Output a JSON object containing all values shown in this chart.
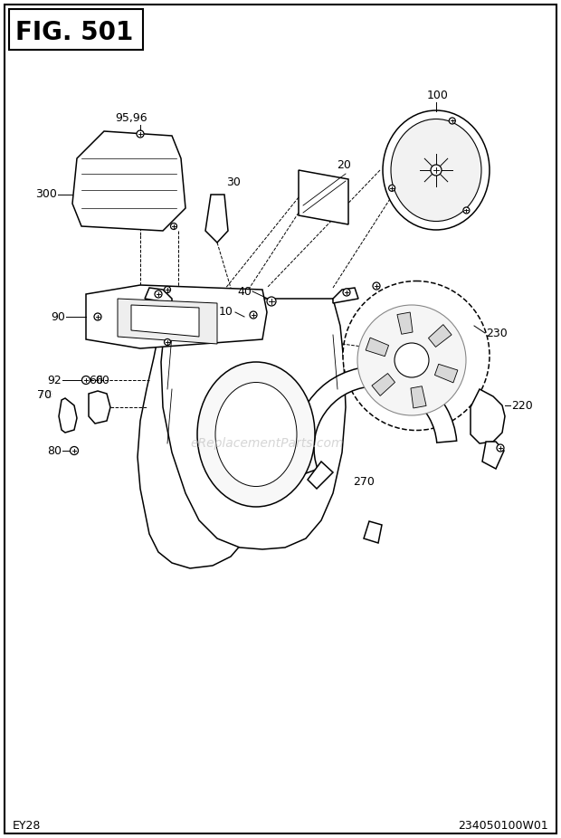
{
  "title": "FIG. 501",
  "bottom_left": "EY28",
  "bottom_right": "234050100W01",
  "bg_color": "#ffffff",
  "border_color": "#000000",
  "text_color": "#000000",
  "watermark": "eReplacementParts.com",
  "fig_width": 6.2,
  "fig_height": 9.26,
  "dpi": 100
}
